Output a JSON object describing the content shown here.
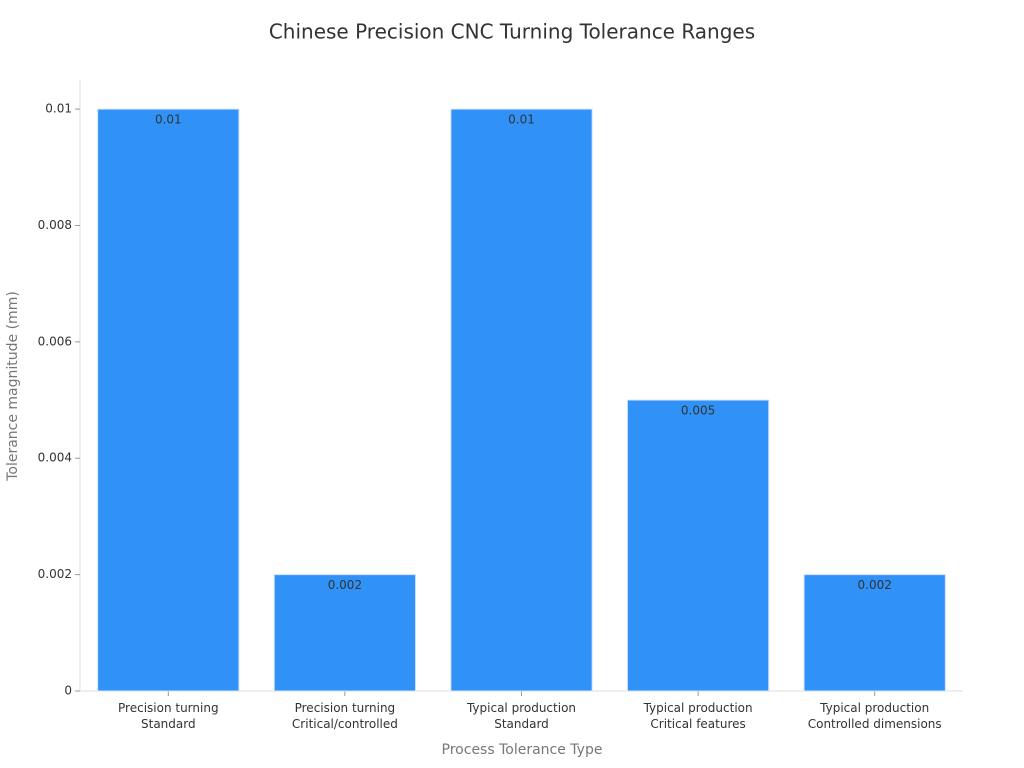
{
  "chart_data": {
    "type": "bar",
    "title": "Chinese Precision CNC Turning Tolerance Ranges",
    "x_label": "Process Tolerance Type",
    "y_label": "Tolerance magnitude (mm)",
    "categories": [
      [
        "Precision turning",
        "Standard"
      ],
      [
        "Precision turning",
        "Critical/controlled"
      ],
      [
        "Typical production",
        "Standard"
      ],
      [
        "Typical production",
        "Critical features"
      ],
      [
        "Typical production",
        "Controlled dimensions"
      ]
    ],
    "values": [
      0.01,
      0.002,
      0.01,
      0.005,
      0.002
    ],
    "color": "#3092f7",
    "ylim": [
      0,
      0.0105
    ],
    "yticks": [
      0,
      0.002,
      0.004,
      0.006,
      0.008,
      0.01
    ]
  }
}
